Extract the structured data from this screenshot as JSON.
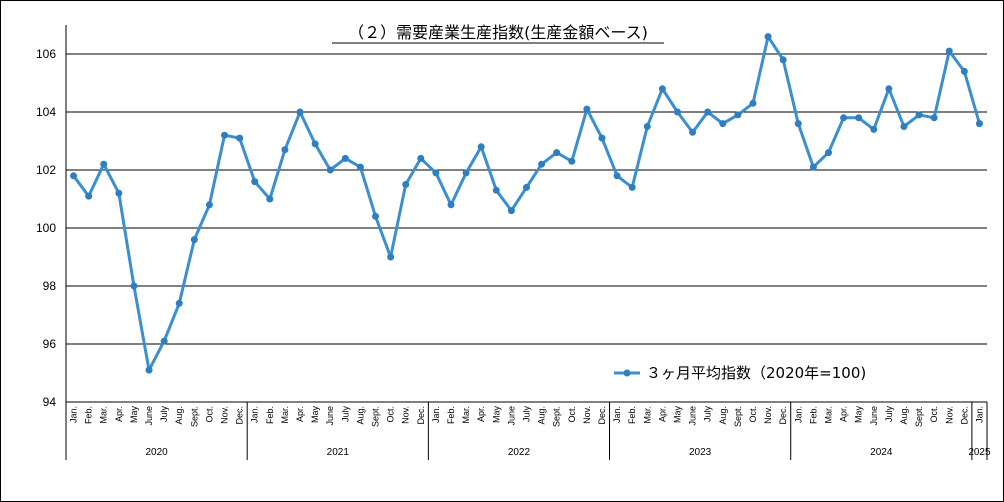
{
  "colors": {
    "series": "#3A8FD0",
    "grid": "#000000",
    "axis": "#000000"
  },
  "chart_data": {
    "type": "line",
    "title": "（２）需要産業生産指数(生産金額ベース)",
    "ylim": [
      94,
      107
    ],
    "yticks": [
      "94",
      "96",
      "98",
      "100",
      "102",
      "104",
      "106"
    ],
    "grid": true,
    "legend_position": "bottom-right",
    "x": [
      "Jan.",
      "Feb.",
      "Mar.",
      "Apr.",
      "May",
      "June",
      "July",
      "Aug.",
      "Sept.",
      "Oct.",
      "Nov.",
      "Dec.",
      "Jan.",
      "Feb.",
      "Mar.",
      "Apr.",
      "May",
      "June",
      "July",
      "Aug.",
      "Sept.",
      "Oct.",
      "Nov.",
      "Dec.",
      "Jan.",
      "Feb.",
      "Mar.",
      "Apr.",
      "May",
      "June",
      "July",
      "Aug.",
      "Sept.",
      "Oct.",
      "Nov.",
      "Dec.",
      "Jan.",
      "Feb.",
      "Mar.",
      "Apr.",
      "May",
      "June",
      "July",
      "Aug.",
      "Sept.",
      "Oct.",
      "Nov.",
      "Dec.",
      "Jan.",
      "Feb.",
      "Mar.",
      "Apr.",
      "May",
      "June",
      "July",
      "Aug.",
      "Sept.",
      "Oct.",
      "Nov.",
      "Dec.",
      "Jan."
    ],
    "years": [
      {
        "label": "2020",
        "start": 0,
        "count": 12
      },
      {
        "label": "2021",
        "start": 12,
        "count": 12
      },
      {
        "label": "2022",
        "start": 24,
        "count": 12
      },
      {
        "label": "2023",
        "start": 36,
        "count": 12
      },
      {
        "label": "2024",
        "start": 48,
        "count": 12
      },
      {
        "label": "2025",
        "start": 60,
        "count": 1
      }
    ],
    "series": [
      {
        "name": "３ヶ月平均指数（2020年=100)",
        "values": [
          101.8,
          101.1,
          102.2,
          101.2,
          98.0,
          95.1,
          96.1,
          97.4,
          99.6,
          100.8,
          103.2,
          103.1,
          101.6,
          101.0,
          102.7,
          104.0,
          102.9,
          102.0,
          102.4,
          102.1,
          100.4,
          99.0,
          101.5,
          102.4,
          101.9,
          100.8,
          101.9,
          102.8,
          101.3,
          100.6,
          101.4,
          102.2,
          102.6,
          102.3,
          104.1,
          103.1,
          101.8,
          101.4,
          103.5,
          104.8,
          104.0,
          103.3,
          104.0,
          103.6,
          103.9,
          104.3,
          106.6,
          105.8,
          103.6,
          102.1,
          102.6,
          103.8,
          103.8,
          103.4,
          104.8,
          103.5,
          103.9,
          103.8,
          106.1,
          105.4,
          103.6
        ]
      }
    ]
  }
}
